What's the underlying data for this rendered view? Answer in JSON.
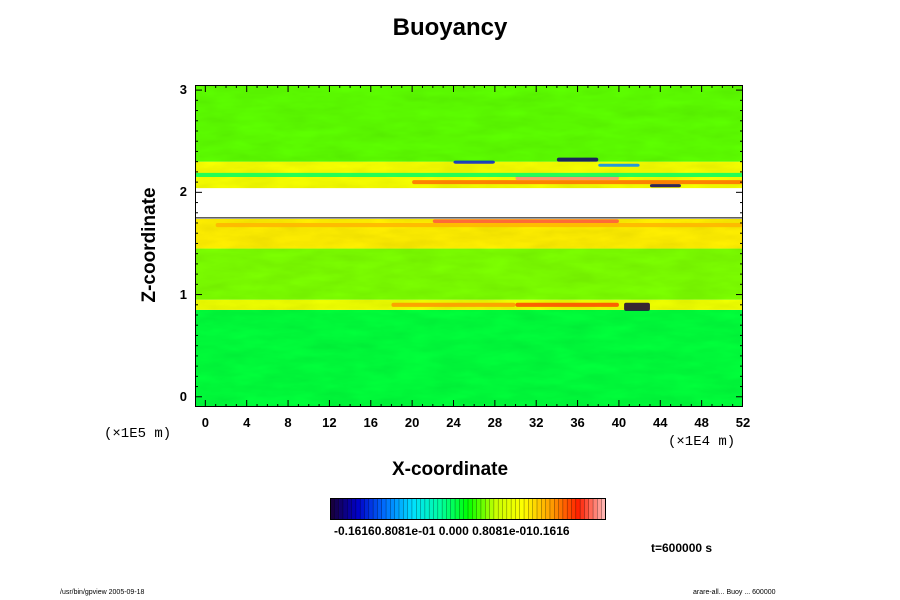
{
  "chart_data": {
    "type": "heatmap",
    "title": "Buoyancy",
    "xlabel": "X-coordinate",
    "ylabel": "Z-coordinate",
    "x_unit_label": "(×1E4 m)",
    "y_unit_label": "(×1E5 m)",
    "x_ticks": [
      "0",
      "4",
      "8",
      "12",
      "16",
      "20",
      "24",
      "28",
      "32",
      "36",
      "40",
      "44",
      "48",
      "52"
    ],
    "y_ticks": [
      "0",
      "1",
      "2",
      "3"
    ],
    "xlim": [
      -1,
      52
    ],
    "ylim": [
      -0.1,
      3.05
    ],
    "colorbar": {
      "labels_text": "-0.16160.8081e-01 0.000 0.8081e-010.1616",
      "range": [
        -0.1616,
        0.1616
      ],
      "colors": [
        "#1a0033",
        "#0000c8",
        "#0070ff",
        "#00e0ff",
        "#00ffa0",
        "#00ff00",
        "#c8ff00",
        "#ffff00",
        "#ffa000",
        "#ff2000",
        "#ffc0c0"
      ]
    },
    "fields": {
      "background_value": 0.0,
      "undefined_band_z": [
        1.74,
        2.04
      ],
      "bands": [
        {
          "name": "lower-region",
          "z": [
            -0.1,
            0.85
          ],
          "value": -0.012
        },
        {
          "name": "lower-bright",
          "z": [
            0.85,
            0.95
          ],
          "value": 0.055
        },
        {
          "name": "middle-region",
          "z": [
            0.95,
            1.45
          ],
          "value": 0.02
        },
        {
          "name": "below-gap-warm",
          "z": [
            1.45,
            1.74
          ],
          "value": 0.07
        },
        {
          "name": "above-gap",
          "z": [
            2.04,
            2.3
          ],
          "value": 0.06
        },
        {
          "name": "upper-region",
          "z": [
            2.3,
            3.05
          ],
          "value": 0.015
        }
      ]
    }
  },
  "time_label": "t=600000 s",
  "footer_left": "/usr/bin/gpview 2005-09-18",
  "footer_right": "arare-all... Buoy ... 600000"
}
